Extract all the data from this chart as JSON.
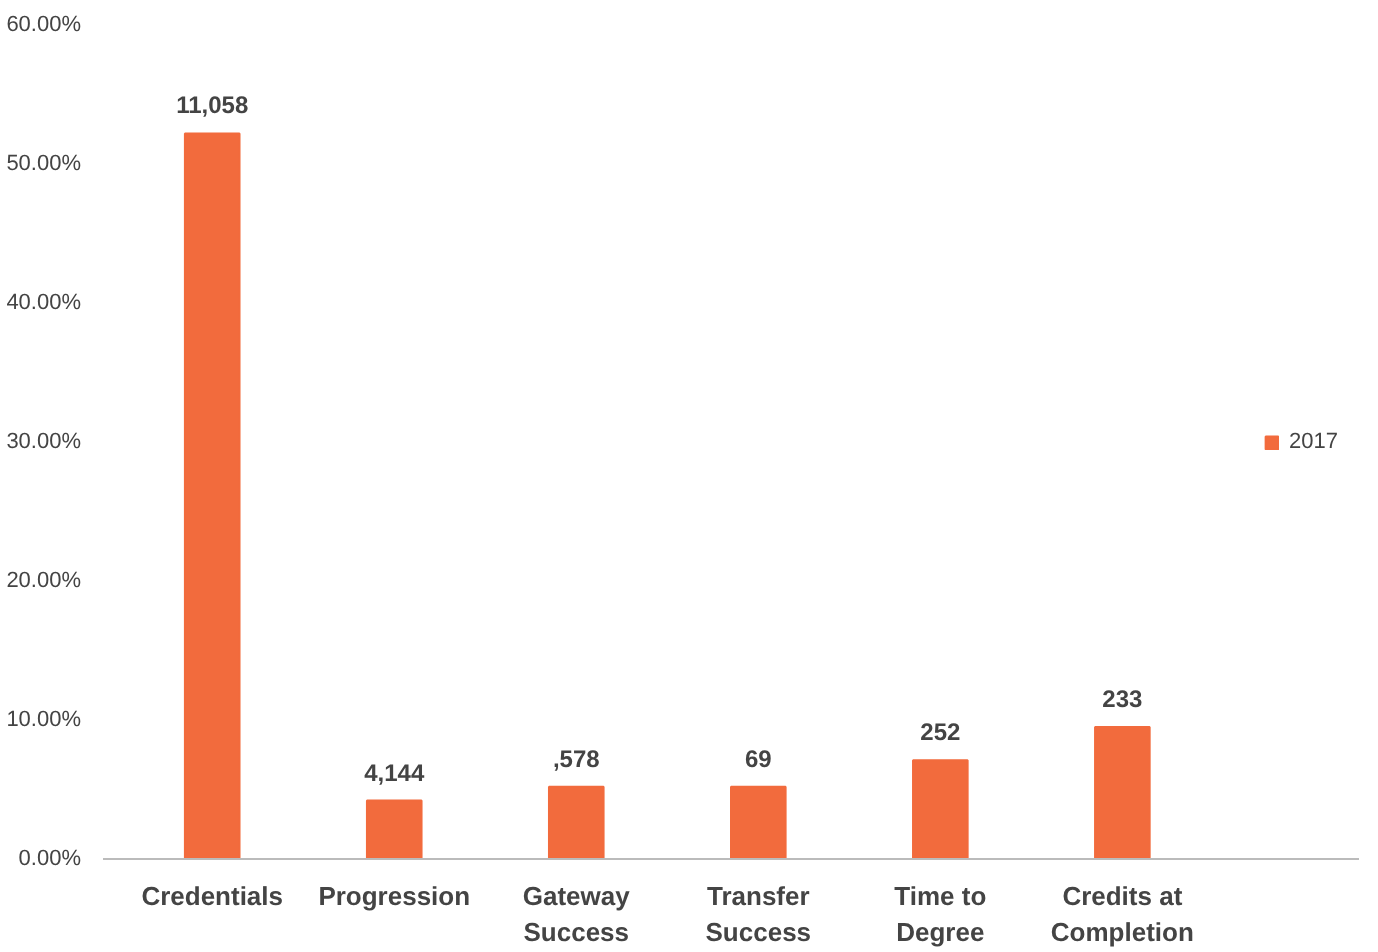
{
  "chart_data": {
    "type": "bar",
    "categories": [
      "Credentials",
      "Progression",
      "Gateway Success",
      "Transfer Success",
      "Time to Degree",
      "Credits at Completion"
    ],
    "series": [
      {
        "name": "2017",
        "color": "#f26b3d",
        "values": [
          52.2,
          4.2,
          5.2,
          5.2,
          7.1,
          9.5
        ]
      }
    ],
    "annotations": [
      {
        "text": "11,058",
        "x": "Credentials",
        "y": 52.2
      },
      {
        "text": "4,144",
        "x": "Progression",
        "y": 4.2
      },
      {
        "text": ",578",
        "x": "Gateway Success",
        "y": 5.2
      },
      {
        "text": "69",
        "x": "Transfer Success",
        "y": 5.2
      },
      {
        "text": "252",
        "x": "Time to Degree",
        "y": 7.1
      },
      {
        "text": "233",
        "x": "Credits at Completion",
        "y": 9.5
      }
    ],
    "ylim": [
      0,
      60
    ],
    "yticks": [
      {
        "value": 0,
        "label": "0.00%"
      },
      {
        "value": 10,
        "label": "10.00%"
      },
      {
        "value": 20,
        "label": "20.00%"
      },
      {
        "value": 30,
        "label": "30.00%"
      },
      {
        "value": 40,
        "label": "40.00%"
      },
      {
        "value": 50,
        "label": "50.00%"
      },
      {
        "value": 60,
        "label": "60.00%"
      }
    ],
    "grid": false,
    "legend": "right"
  }
}
